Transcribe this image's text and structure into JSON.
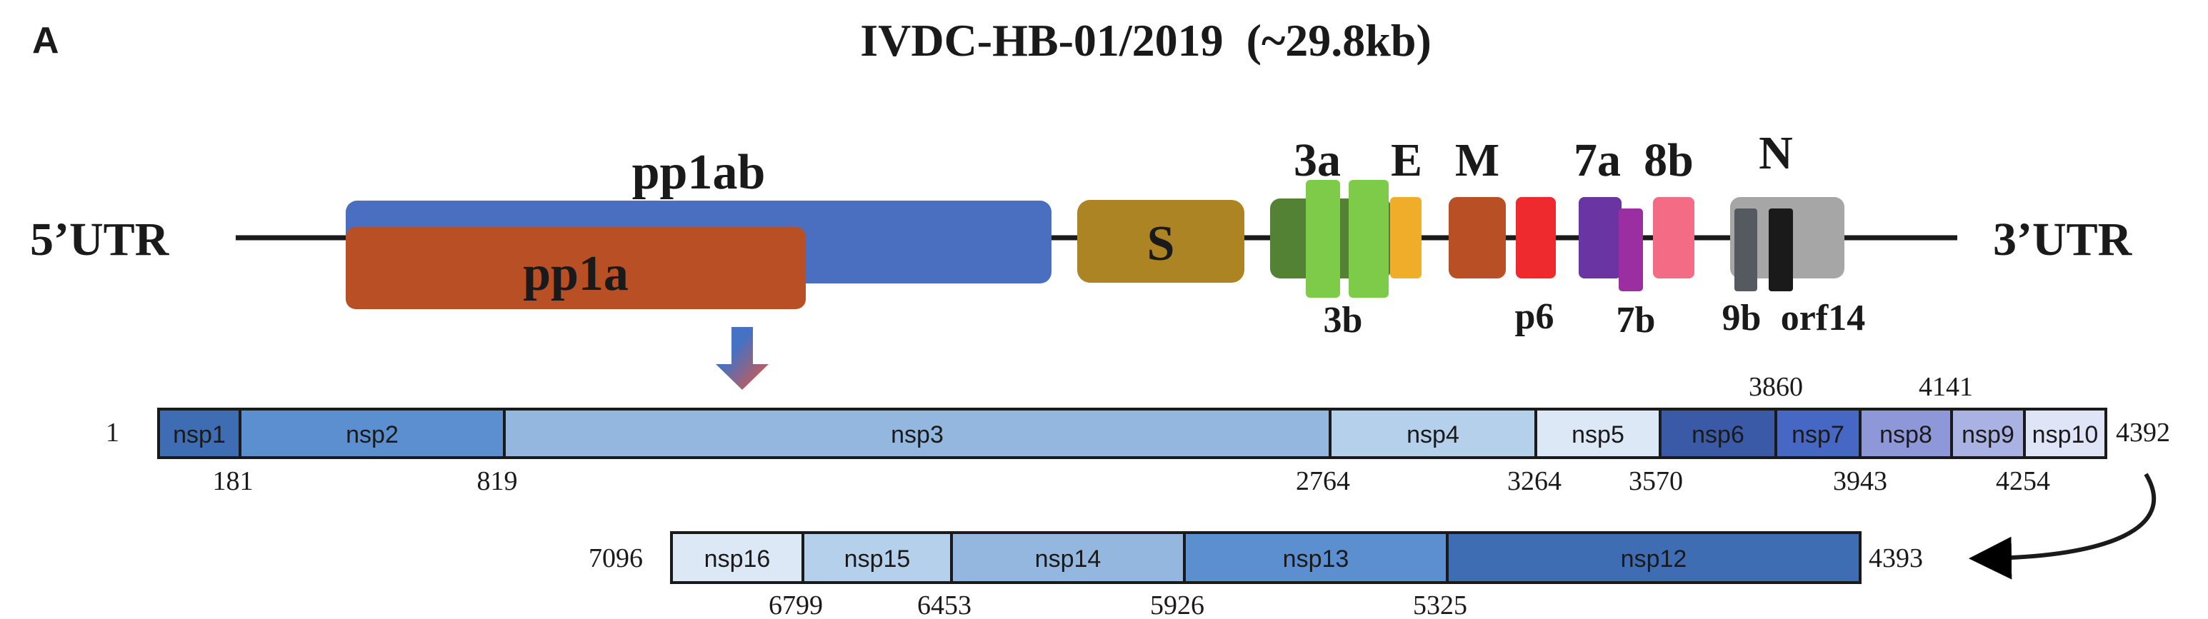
{
  "panel_label": "A",
  "title": "IVDC-HB-01/2019  (~29.8kb)",
  "genome": {
    "utr5": "5’UTR",
    "utr3": "3’UTR",
    "genes": {
      "pp1ab": {
        "label": "pp1ab",
        "color": "#4a6fc1"
      },
      "pp1a": {
        "label": "pp1a",
        "color": "#b94f24"
      },
      "S": {
        "label": "S",
        "color": "#ad8423"
      },
      "3a": {
        "label": "3a",
        "color": "#548235"
      },
      "3b": {
        "label": "3b",
        "color": "#7ecb4a"
      },
      "E": {
        "label": "E",
        "color": "#f0ad2a"
      },
      "M": {
        "label": "M",
        "color": "#b94f24"
      },
      "p6": {
        "label": "p6",
        "color": "#ee2a2f"
      },
      "7a": {
        "label": "7a",
        "color": "#6a35a3"
      },
      "7b": {
        "label": "7b",
        "color": "#9b2ea0"
      },
      "8b": {
        "label": "8b",
        "color": "#f46b86"
      },
      "N": {
        "label": "N",
        "color": "#a6a6a6"
      },
      "9b": {
        "label": "9b",
        "color": "#555a60"
      },
      "orf14": {
        "label": "orf14",
        "color": "#1a1a1a"
      }
    }
  },
  "nsp_row1": {
    "start_label": "1",
    "end_label": "4392",
    "segments": [
      {
        "label": "nsp1",
        "color": "#3f6db4"
      },
      {
        "label": "nsp2",
        "color": "#5b8fcf"
      },
      {
        "label": "nsp3",
        "color": "#93b7de"
      },
      {
        "label": "nsp4",
        "color": "#b5d0ea"
      },
      {
        "label": "nsp5",
        "color": "#dce8f6"
      },
      {
        "label": "nsp6",
        "color": "#3a5aa8"
      },
      {
        "label": "nsp7",
        "color": "#4668c4"
      },
      {
        "label": "nsp8",
        "color": "#8e98d8"
      },
      {
        "label": "nsp9",
        "color": "#aab2e4"
      },
      {
        "label": "nsp10",
        "color": "#dfe5f7"
      }
    ],
    "positions_below": [
      "181",
      "819",
      "2764",
      "3264",
      "3570",
      "3943",
      "4254"
    ],
    "positions_above": [
      "3860",
      "4141"
    ]
  },
  "nsp_row2": {
    "start_label": "7096",
    "end_label": "4393",
    "segments": [
      {
        "label": "nsp16",
        "color": "#dce8f6"
      },
      {
        "label": "nsp15",
        "color": "#b5d0ea"
      },
      {
        "label": "nsp14",
        "color": "#93b7de"
      },
      {
        "label": "nsp13",
        "color": "#5b8fcf"
      },
      {
        "label": "nsp12",
        "color": "#3f6db4"
      }
    ],
    "positions_below": [
      "6799",
      "6453",
      "5926",
      "5325"
    ]
  },
  "arrow_colors": {
    "top": "#4472c4",
    "bottom": "#e8553a"
  }
}
